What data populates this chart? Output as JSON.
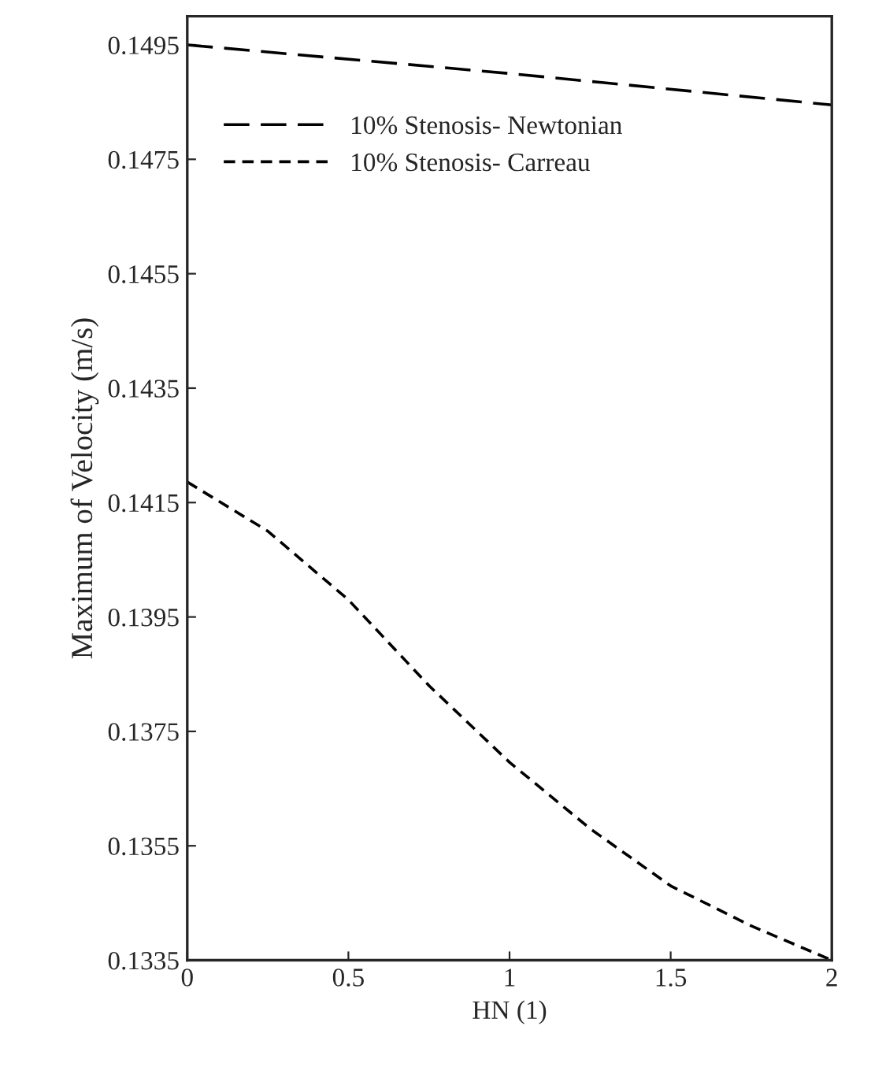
{
  "chart_data": {
    "type": "line",
    "xlabel": "HN (1)",
    "ylabel": "Maximum of Velocity (m/s)",
    "xlim": [
      0,
      2
    ],
    "xticks": [
      0,
      0.5,
      1,
      1.5,
      2
    ],
    "ylim": [
      0.1335,
      0.15
    ],
    "yticks": [
      0.1335,
      0.1355,
      0.1375,
      0.1395,
      0.1415,
      0.1435,
      0.1455,
      0.1475,
      0.1495
    ],
    "grid": false,
    "legend": "top left",
    "series": [
      {
        "name": "10% Stenosis- Newtonian",
        "color": "#000000",
        "line_style": "dashed",
        "x": [
          0,
          1,
          2
        ],
        "values": [
          0.1495,
          0.149,
          0.14845
        ]
      },
      {
        "name": "10% Stenosis- Carreau",
        "color": "#000000",
        "line_style": "dotted",
        "x": [
          0,
          0.25,
          0.5,
          0.75,
          1,
          1.25,
          1.5,
          1.75,
          2
        ],
        "values": [
          0.14186,
          0.141,
          0.1398,
          0.1383,
          0.13696,
          0.1358,
          0.1348,
          0.1341,
          0.1335
        ]
      }
    ]
  }
}
